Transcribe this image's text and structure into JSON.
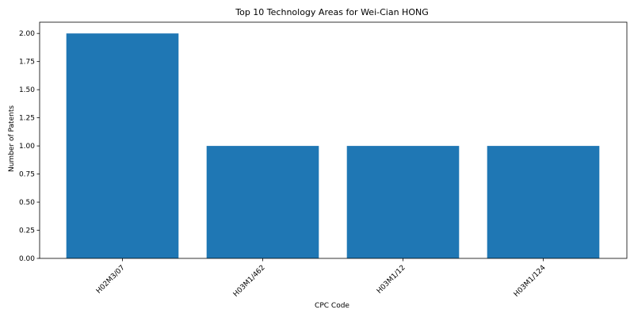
{
  "chart_data": {
    "type": "bar",
    "title": "Top 10 Technology Areas for Wei-Cian HONG",
    "xlabel": "CPC Code",
    "ylabel": "Number of Patents",
    "categories": [
      "H02M3/07",
      "H03M1/462",
      "H03M1/12",
      "H03M1/124"
    ],
    "values": [
      2,
      1,
      1,
      1
    ],
    "ylim": [
      0,
      2.1
    ],
    "yticks": [
      "0.00",
      "0.25",
      "0.50",
      "0.75",
      "1.00",
      "1.25",
      "1.50",
      "1.75",
      "2.00"
    ],
    "bar_color": "#1f77b4",
    "grid": false,
    "legend": "none"
  }
}
